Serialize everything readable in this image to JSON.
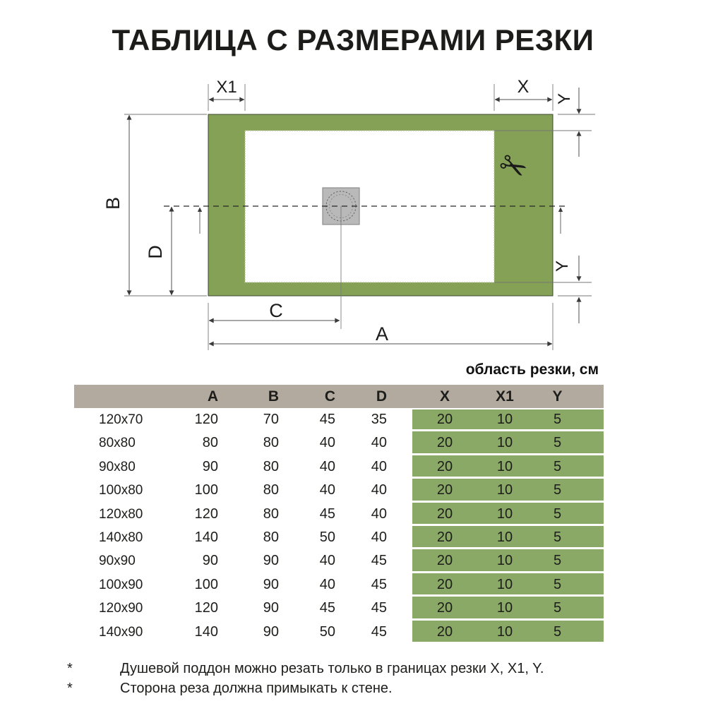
{
  "title": "ТАБЛИЦА С РАЗМЕРАМИ РЕЗКИ",
  "colors": {
    "tray_green": "#85a156",
    "table_green": "#8aa866",
    "header_tan": "#b2aa9e",
    "drain_gray": "#b9b9b9"
  },
  "diagram": {
    "dim_labels": {
      "a": "A",
      "b": "B",
      "c": "C",
      "d": "D",
      "x": "X",
      "x1": "X1",
      "y_top": "Y",
      "y_bottom": "Y"
    },
    "scissors_icon": "✂"
  },
  "cut_area_label": "область резки, см",
  "table": {
    "columns": [
      "",
      "A",
      "B",
      "C",
      "D",
      "X",
      "X1",
      "Y"
    ],
    "rows": [
      {
        "size": "120x70",
        "a": "120",
        "b": "70",
        "c": "45",
        "d": "35",
        "x": "20",
        "x1": "10",
        "y": "5"
      },
      {
        "size": "80x80",
        "a": "80",
        "b": "80",
        "c": "40",
        "d": "40",
        "x": "20",
        "x1": "10",
        "y": "5"
      },
      {
        "size": "90x80",
        "a": "90",
        "b": "80",
        "c": "40",
        "d": "40",
        "x": "20",
        "x1": "10",
        "y": "5"
      },
      {
        "size": "100x80",
        "a": "100",
        "b": "80",
        "c": "40",
        "d": "40",
        "x": "20",
        "x1": "10",
        "y": "5"
      },
      {
        "size": "120x80",
        "a": "120",
        "b": "80",
        "c": "45",
        "d": "40",
        "x": "20",
        "x1": "10",
        "y": "5"
      },
      {
        "size": "140x80",
        "a": "140",
        "b": "80",
        "c": "50",
        "d": "40",
        "x": "20",
        "x1": "10",
        "y": "5"
      },
      {
        "size": "90x90",
        "a": "90",
        "b": "90",
        "c": "40",
        "d": "45",
        "x": "20",
        "x1": "10",
        "y": "5"
      },
      {
        "size": "100x90",
        "a": "100",
        "b": "90",
        "c": "40",
        "d": "45",
        "x": "20",
        "x1": "10",
        "y": "5"
      },
      {
        "size": "120x90",
        "a": "120",
        "b": "90",
        "c": "45",
        "d": "45",
        "x": "20",
        "x1": "10",
        "y": "5"
      },
      {
        "size": "140x90",
        "a": "140",
        "b": "90",
        "c": "50",
        "d": "45",
        "x": "20",
        "x1": "10",
        "y": "5"
      }
    ]
  },
  "footnotes": [
    {
      "marker": "*",
      "text": "Душевой поддон можно резать только в границах резки X, X1, Y."
    },
    {
      "marker": "*",
      "text": "Сторона реза должна примыкать к стене."
    }
  ]
}
